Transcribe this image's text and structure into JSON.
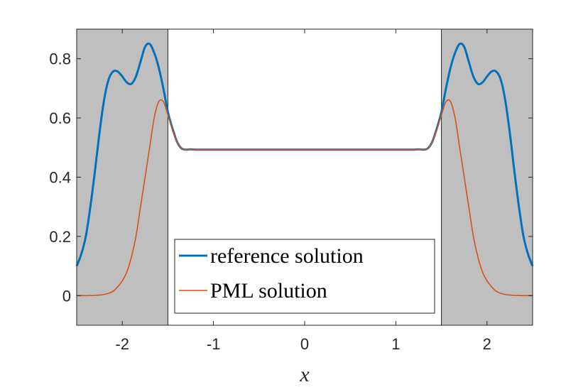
{
  "chart_data": {
    "type": "line",
    "xlabel": "x",
    "ylabel": "",
    "title": "",
    "xlim": [
      -2.5,
      2.5
    ],
    "ylim": [
      -0.1,
      0.9
    ],
    "xticks": [
      "-2",
      "-1",
      "0",
      "1",
      "2"
    ],
    "yticks": [
      "0",
      "0.2",
      "0.4",
      "0.6",
      "0.8"
    ],
    "xtick_values": [
      -2,
      -1,
      0,
      1,
      2
    ],
    "ytick_values": [
      0,
      0.2,
      0.4,
      0.6,
      0.8
    ],
    "shaded_regions": [
      [
        -2.5,
        -1.5
      ],
      [
        1.5,
        2.5
      ]
    ],
    "shaded_color": "#bfbfbf",
    "legend_position": "bottom-center",
    "series": [
      {
        "name": "reference solution",
        "color": "#0072bd",
        "x": [
          0,
          0.05,
          0.1,
          0.15,
          0.2,
          0.25,
          0.3,
          0.35,
          0.4,
          0.45,
          0.5,
          0.55,
          0.6,
          0.65,
          0.7,
          0.75,
          0.8,
          0.85,
          0.9,
          0.95,
          1.0,
          1.05,
          1.1,
          1.15,
          1.2,
          1.25,
          1.3,
          1.35,
          1.4,
          1.45,
          1.5,
          1.55,
          1.6,
          1.65,
          1.7,
          1.75,
          1.8,
          1.85,
          1.9,
          1.95,
          2.0,
          2.05,
          2.1,
          2.15,
          2.2,
          2.25,
          2.3,
          2.35,
          2.4,
          2.45,
          2.5
        ],
        "y": [
          0.493,
          0.493,
          0.493,
          0.493,
          0.493,
          0.493,
          0.493,
          0.493,
          0.493,
          0.493,
          0.493,
          0.493,
          0.493,
          0.493,
          0.493,
          0.493,
          0.493,
          0.493,
          0.493,
          0.493,
          0.493,
          0.493,
          0.493,
          0.493,
          0.493,
          0.494,
          0.493,
          0.497,
          0.52,
          0.565,
          0.62,
          0.7,
          0.77,
          0.82,
          0.85,
          0.84,
          0.79,
          0.74,
          0.715,
          0.72,
          0.74,
          0.757,
          0.757,
          0.73,
          0.66,
          0.55,
          0.42,
          0.3,
          0.2,
          0.14,
          0.1
        ]
      },
      {
        "name": "PML solution",
        "color": "#d95319",
        "x": [
          0,
          0.05,
          0.1,
          0.15,
          0.2,
          0.25,
          0.3,
          0.35,
          0.4,
          0.45,
          0.5,
          0.55,
          0.6,
          0.65,
          0.7,
          0.75,
          0.8,
          0.85,
          0.9,
          0.95,
          1.0,
          1.05,
          1.1,
          1.15,
          1.2,
          1.25,
          1.3,
          1.35,
          1.4,
          1.45,
          1.5,
          1.55,
          1.6,
          1.65,
          1.7,
          1.75,
          1.8,
          1.85,
          1.9,
          1.95,
          2.0,
          2.05,
          2.1,
          2.15,
          2.2,
          2.25,
          2.3,
          2.35,
          2.4,
          2.45,
          2.5
        ],
        "y": [
          0.493,
          0.493,
          0.493,
          0.493,
          0.493,
          0.493,
          0.493,
          0.493,
          0.493,
          0.493,
          0.493,
          0.493,
          0.493,
          0.493,
          0.493,
          0.493,
          0.493,
          0.493,
          0.493,
          0.493,
          0.493,
          0.493,
          0.493,
          0.493,
          0.493,
          0.494,
          0.493,
          0.497,
          0.52,
          0.56,
          0.61,
          0.655,
          0.655,
          0.6,
          0.5,
          0.4,
          0.3,
          0.2,
          0.13,
          0.08,
          0.05,
          0.03,
          0.015,
          0.008,
          0.004,
          0.002,
          0.001,
          0.0005,
          0.0,
          0.0,
          0.0
        ]
      }
    ]
  }
}
